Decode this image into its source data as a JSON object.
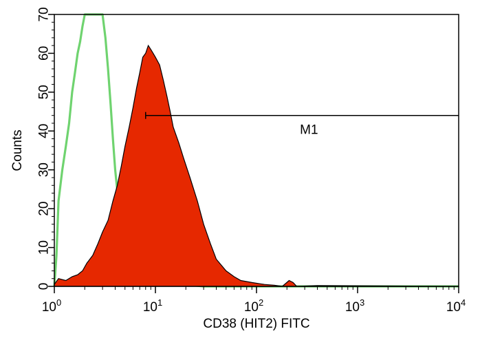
{
  "chart_data": {
    "type": "area",
    "xlabel": "CD38 (HIT2) FITC",
    "ylabel": "Counts",
    "x_scale": "log",
    "xlim": [
      1,
      10000
    ],
    "ylim": [
      0,
      70
    ],
    "x_ticks": [
      {
        "base": "10",
        "exp": "0",
        "value": 1
      },
      {
        "base": "10",
        "exp": "1",
        "value": 10
      },
      {
        "base": "10",
        "exp": "2",
        "value": 100
      },
      {
        "base": "10",
        "exp": "3",
        "value": 1000
      },
      {
        "base": "10",
        "exp": "4",
        "value": 10000
      }
    ],
    "y_ticks": [
      0,
      10,
      20,
      30,
      40,
      50,
      60,
      70
    ],
    "grid": false,
    "series": [
      {
        "style": "outline",
        "color": "#6fd36f",
        "points": [
          [
            1.0,
            0
          ],
          [
            1.05,
            8
          ],
          [
            1.1,
            22
          ],
          [
            1.2,
            30
          ],
          [
            1.3,
            36
          ],
          [
            1.4,
            42
          ],
          [
            1.5,
            50
          ],
          [
            1.6,
            55
          ],
          [
            1.7,
            60
          ],
          [
            1.8,
            63
          ],
          [
            1.9,
            67
          ],
          [
            2.0,
            70
          ],
          [
            2.5,
            70
          ],
          [
            3.0,
            70
          ],
          [
            3.2,
            64
          ],
          [
            3.4,
            56
          ],
          [
            3.6,
            47
          ],
          [
            3.8,
            38
          ],
          [
            4.0,
            30
          ],
          [
            4.3,
            22
          ],
          [
            4.6,
            15
          ],
          [
            5.0,
            9
          ],
          [
            5.5,
            5
          ],
          [
            6.0,
            2
          ],
          [
            7.0,
            1
          ],
          [
            8.0,
            1.5
          ],
          [
            9.0,
            0.5
          ],
          [
            11,
            0.3
          ],
          [
            13,
            1
          ],
          [
            15,
            0.2
          ],
          [
            20,
            0.5
          ],
          [
            25,
            0.2
          ],
          [
            30,
            0
          ],
          [
            10000,
            0
          ]
        ]
      },
      {
        "style": "filled",
        "color": "#e62800",
        "points": [
          [
            1.0,
            0.5
          ],
          [
            1.1,
            2
          ],
          [
            1.3,
            1.5
          ],
          [
            1.5,
            2.5
          ],
          [
            1.7,
            3
          ],
          [
            1.9,
            4
          ],
          [
            2.1,
            6
          ],
          [
            2.4,
            8
          ],
          [
            2.7,
            11
          ],
          [
            3.0,
            14
          ],
          [
            3.4,
            17
          ],
          [
            3.8,
            22
          ],
          [
            4.2,
            26
          ],
          [
            4.6,
            31
          ],
          [
            5.0,
            36
          ],
          [
            5.5,
            41
          ],
          [
            6.0,
            46
          ],
          [
            6.5,
            51
          ],
          [
            7.0,
            55
          ],
          [
            7.5,
            59
          ],
          [
            8.0,
            60
          ],
          [
            8.5,
            62
          ],
          [
            9.0,
            61
          ],
          [
            9.5,
            60
          ],
          [
            10.0,
            59
          ],
          [
            11.0,
            57
          ],
          [
            12.0,
            53
          ],
          [
            13.0,
            49
          ],
          [
            14.0,
            45
          ],
          [
            15.0,
            41
          ],
          [
            17.0,
            37
          ],
          [
            19.0,
            33
          ],
          [
            22.0,
            28
          ],
          [
            26.0,
            22
          ],
          [
            30.0,
            16
          ],
          [
            35.0,
            11
          ],
          [
            40.0,
            7
          ],
          [
            50.0,
            4
          ],
          [
            60.0,
            2.5
          ],
          [
            70.0,
            1.5
          ],
          [
            90.0,
            1
          ],
          [
            120,
            0.5
          ],
          [
            150,
            0.3
          ],
          [
            180,
            0
          ],
          [
            210,
            1.5
          ],
          [
            230,
            1
          ],
          [
            250,
            0
          ],
          [
            400,
            0.2
          ],
          [
            10000,
            0
          ]
        ]
      }
    ],
    "markers": [
      {
        "label": "M1",
        "x_start": 8,
        "x_end": 10000,
        "y": 44
      }
    ],
    "annotations": [
      "M1"
    ]
  }
}
